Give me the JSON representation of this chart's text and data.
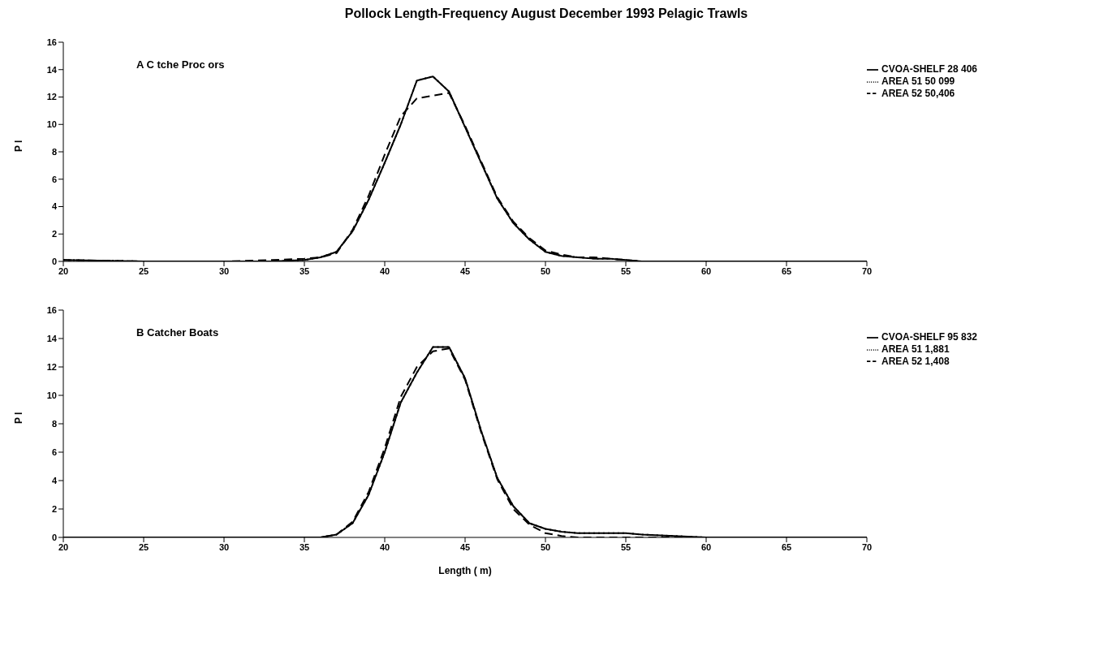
{
  "chart_data": [
    {
      "type": "line",
      "title": "Pollock Length-Frequency  August December 1993  Pelagic Trawls",
      "ylabel": "P   l",
      "annotations": [
        "A  C  tche  Proc      ors"
      ],
      "x": [
        20,
        25,
        30,
        33,
        35,
        36,
        37,
        38,
        39,
        40,
        41,
        42,
        43,
        44,
        45,
        46,
        47,
        48,
        49,
        50,
        51,
        52,
        53,
        54,
        55,
        56,
        58,
        60,
        65,
        70
      ],
      "series": [
        {
          "name": "CVOA-SHELF  28 406",
          "color": "#000000",
          "line_style": "solid",
          "values": [
            0.1,
            0,
            0,
            0,
            0.1,
            0.3,
            0.7,
            2.2,
            4.5,
            7.2,
            10,
            13.2,
            13.5,
            12.4,
            9.8,
            7.2,
            4.6,
            2.8,
            1.6,
            0.7,
            0.4,
            0.3,
            0.2,
            0.2,
            0.1,
            0,
            0,
            0,
            0,
            0
          ]
        },
        {
          "name": "AREA 51  50 099",
          "color": "#000000",
          "line_style": "dotted",
          "values": [
            0.1,
            0,
            0,
            0,
            0.1,
            0.3,
            0.7,
            2.2,
            4.5,
            7.2,
            10,
            13.2,
            13.5,
            12.4,
            9.8,
            7.2,
            4.6,
            2.8,
            1.6,
            0.7,
            0.4,
            0.3,
            0.2,
            0.2,
            0.1,
            0,
            0,
            0,
            0,
            0
          ]
        },
        {
          "name": "AREA 52  50,406",
          "color": "#000000",
          "line_style": "dashed",
          "values": [
            0.1,
            0,
            0,
            0.1,
            0.2,
            0.3,
            0.6,
            2.3,
            4.8,
            7.8,
            10.6,
            11.9,
            12.1,
            12.3,
            9.9,
            7.3,
            4.7,
            2.9,
            1.7,
            0.8,
            0.5,
            0.3,
            0.3,
            0.2,
            0.1,
            0,
            0,
            0,
            0,
            0
          ]
        }
      ],
      "xlim": [
        20,
        70
      ],
      "xticks": [
        20,
        25,
        30,
        35,
        40,
        45,
        50,
        55,
        60,
        65,
        70
      ],
      "ylim": [
        0,
        16
      ],
      "yticks": [
        0,
        2,
        4,
        6,
        8,
        10,
        12,
        14,
        16
      ],
      "grid": false,
      "legend": "top right"
    },
    {
      "type": "line",
      "xlabel": "Length (  m)",
      "ylabel": "P   l",
      "annotations": [
        "B  Catcher Boats"
      ],
      "x": [
        20,
        25,
        30,
        33,
        35,
        36,
        37,
        38,
        39,
        40,
        41,
        42,
        43,
        44,
        45,
        46,
        47,
        48,
        49,
        50,
        51,
        52,
        53,
        54,
        55,
        56,
        58,
        60,
        65,
        70
      ],
      "series": [
        {
          "name": "CVOA-SHELF  95 832",
          "color": "#000000",
          "line_style": "solid",
          "values": [
            0,
            0,
            0,
            0,
            0,
            0,
            0.2,
            1,
            3,
            6,
            9.5,
            11.6,
            13.4,
            13.4,
            11.2,
            7.5,
            4.2,
            2.2,
            1,
            0.6,
            0.4,
            0.3,
            0.3,
            0.3,
            0.3,
            0.2,
            0.1,
            0,
            0,
            0
          ]
        },
        {
          "name": "AREA 51  1,881",
          "color": "#000000",
          "line_style": "dotted",
          "values": [
            0,
            0,
            0,
            0,
            0,
            0,
            0.2,
            1,
            3,
            6,
            9.5,
            11.6,
            13.4,
            13.4,
            11.2,
            7.5,
            4.2,
            2.2,
            1,
            0.6,
            0.4,
            0.3,
            0.3,
            0.3,
            0.3,
            0.2,
            0.1,
            0,
            0,
            0
          ]
        },
        {
          "name": "AREA 52  1,408",
          "color": "#000000",
          "line_style": "dashed",
          "values": [
            0,
            0,
            0,
            0,
            0,
            0,
            0.2,
            1.1,
            3.2,
            6.3,
            9.9,
            12,
            13.1,
            13.3,
            11.1,
            7.4,
            4.1,
            2,
            0.9,
            0.3,
            0.1,
            0,
            0,
            0,
            0,
            0,
            0,
            0,
            0,
            0
          ]
        }
      ],
      "xlim": [
        20,
        70
      ],
      "xticks": [
        20,
        25,
        30,
        35,
        40,
        45,
        50,
        55,
        60,
        65,
        70
      ],
      "ylim": [
        0,
        16
      ],
      "yticks": [
        0,
        2,
        4,
        6,
        8,
        10,
        12,
        14,
        16
      ],
      "grid": false,
      "legend": "top right"
    }
  ]
}
